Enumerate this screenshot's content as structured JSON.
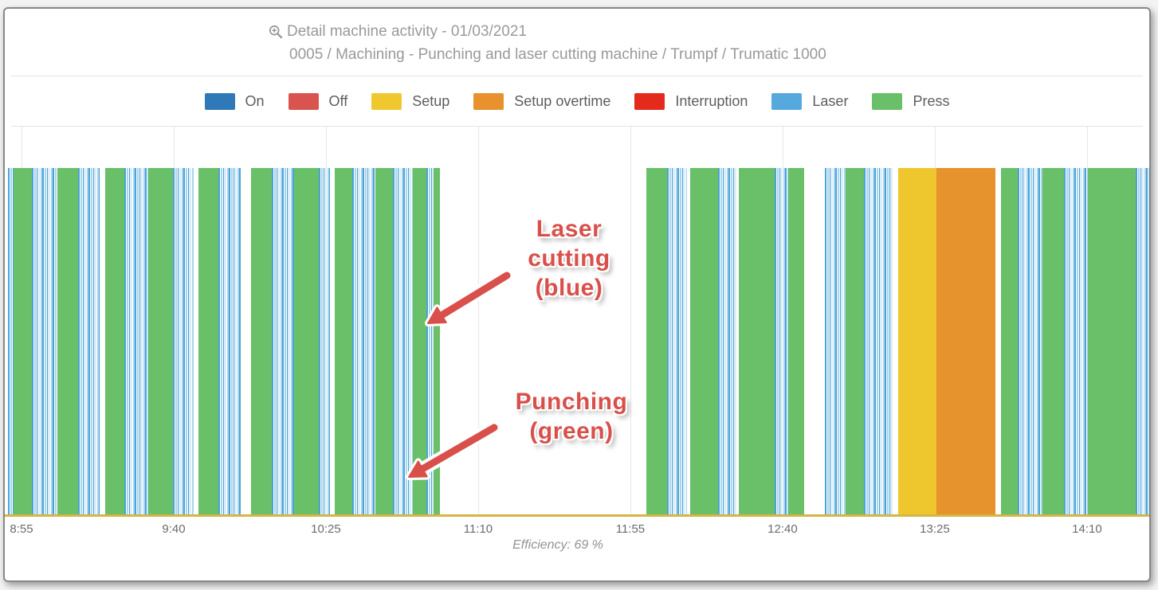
{
  "header": {
    "title": "Detail machine activity - 01/03/2021",
    "subtitle": "0005 / Machining - Punching and laser cutting machine / Trumpf / Trumatic 1000"
  },
  "legend": {
    "items": [
      {
        "label": "On",
        "color": "#3079b8"
      },
      {
        "label": "Off",
        "color": "#d9534f"
      },
      {
        "label": "Setup",
        "color": "#efc72f"
      },
      {
        "label": "Setup overtime",
        "color": "#e8912d"
      },
      {
        "label": "Interruption",
        "color": "#e42a1d"
      },
      {
        "label": "Laser",
        "color": "#55a9dd"
      },
      {
        "label": "Press",
        "color": "#6abf69"
      }
    ]
  },
  "chart_data": {
    "type": "timeline",
    "title": "Detail machine activity - 01/03/2021",
    "machine": "0005 / Machining - Punching and laser cutting machine / Trumpf / Trumatic 1000",
    "date": "01/03/2021",
    "legend_position": "top",
    "grid": true,
    "efficiency_label": "Efficiency: 69 %",
    "efficiency_pct": 69,
    "x_axis": {
      "start_time": "8:51",
      "end_time": "14:28",
      "total_minutes": 337.4,
      "tick_interval_min": 45
    },
    "ticks": [
      {
        "label": "8:55",
        "min": 4
      },
      {
        "label": "9:40",
        "min": 49
      },
      {
        "label": "10:25",
        "min": 94
      },
      {
        "label": "11:10",
        "min": 139
      },
      {
        "label": "11:55",
        "min": 184
      },
      {
        "label": "12:40",
        "min": 229
      },
      {
        "label": "13:25",
        "min": 274
      },
      {
        "label": "14:10",
        "min": 319
      }
    ],
    "segments": [
      [
        "laser",
        0,
        1.6
      ],
      [
        "press",
        1.6,
        7.1
      ],
      [
        "laser",
        7.1,
        14.6
      ],
      [
        "press",
        14.6,
        20.7
      ],
      [
        "laser",
        20.7,
        27.1
      ],
      [
        "idle",
        27.1,
        28.7
      ],
      [
        "press",
        28.7,
        34.4
      ],
      [
        "laser",
        34.4,
        41.4
      ],
      [
        "press",
        41.4,
        48.7
      ],
      [
        "laser",
        48.7,
        54.8
      ],
      [
        "idle",
        54.8,
        56.3
      ],
      [
        "press",
        56.3,
        62.2
      ],
      [
        "laser",
        62.2,
        68.7
      ],
      [
        "idle",
        68.7,
        71.8
      ],
      [
        "press",
        71.8,
        77.9
      ],
      [
        "laser",
        77.9,
        84.5
      ],
      [
        "press",
        84.5,
        92.0
      ],
      [
        "laser",
        92.0,
        95.1
      ],
      [
        "idle",
        95.1,
        96.5
      ],
      [
        "press",
        96.5,
        101.7
      ],
      [
        "laser",
        101.7,
        108.5
      ],
      [
        "press",
        108.5,
        113.7
      ],
      [
        "laser",
        113.7,
        119.8
      ],
      [
        "press",
        119.8,
        123.6
      ],
      [
        "laser",
        123.6,
        125.9
      ],
      [
        "press",
        125.9,
        127.8
      ],
      [
        "idle",
        127.8,
        188.8
      ],
      [
        "press",
        188.8,
        194.9
      ],
      [
        "laser",
        194.9,
        200.8
      ],
      [
        "idle",
        200.8,
        201.7
      ],
      [
        "press",
        201.7,
        210.0
      ],
      [
        "laser",
        210.0,
        215.6
      ],
      [
        "press",
        216.1,
        226.7
      ],
      [
        "laser",
        226.7,
        230.7
      ],
      [
        "press",
        230.7,
        235.4
      ],
      [
        "idle",
        235.4,
        241.5
      ],
      [
        "laser",
        241.5,
        247.6
      ],
      [
        "press",
        247.6,
        253.0
      ],
      [
        "laser",
        253.0,
        261.7
      ],
      [
        "idle",
        261.7,
        263.2
      ],
      [
        "setup",
        263.2,
        274.5
      ],
      [
        "setup_overtime",
        274.5,
        291.9
      ],
      [
        "idle",
        291.9,
        293.5
      ],
      [
        "press",
        293.5,
        298.5
      ],
      [
        "laser",
        298.5,
        305.8
      ],
      [
        "press",
        305.8,
        312.1
      ],
      [
        "laser",
        312.1,
        319.2
      ],
      [
        "press",
        319.2,
        333.3
      ],
      [
        "laser",
        333.3,
        337.4
      ]
    ]
  },
  "annotations": [
    {
      "text": "Laser cutting (blue)",
      "lines": [
        "Laser",
        "cutting",
        "(blue)"
      ]
    },
    {
      "text": "Punching (green)",
      "lines": [
        "Punching",
        "(green)"
      ]
    }
  ],
  "colors": {
    "press": "#6abf69",
    "laser": "#4aa3d8",
    "laser_light": "#a8d5ee",
    "laser_pale": "#ddeef8",
    "setup": "#eec62e",
    "setup_overtime": "#e6922d",
    "axis_line": "#d5b545",
    "grid": "#e7e7e7",
    "annotation_red": "#d9504b"
  }
}
